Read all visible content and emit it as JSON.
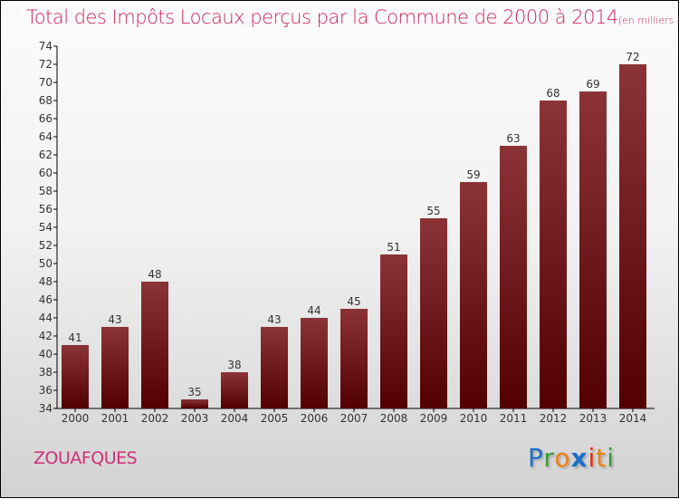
{
  "title": "Total des Impôts Locaux perçus par la Commune de 2000 à 2014",
  "title_unit": "(en milliers d'€)",
  "commune": "ZOUAFQUES",
  "logo": "Proxiti",
  "colors": {
    "bar_top": "#8b3438",
    "bar_bottom": "#520000",
    "title": "#c8285a"
  },
  "chart_data": {
    "type": "bar",
    "title": "Total des Impôts Locaux perçus par la Commune de 2000 à 2014 (en milliers d'€)",
    "xlabel": "",
    "ylabel": "",
    "categories": [
      "2000",
      "2001",
      "2002",
      "2003",
      "2004",
      "2005",
      "2006",
      "2007",
      "2008",
      "2009",
      "2010",
      "2011",
      "2012",
      "2013",
      "2014"
    ],
    "values": [
      41,
      43,
      48,
      35,
      38,
      43,
      44,
      45,
      51,
      55,
      59,
      63,
      68,
      69,
      72
    ],
    "ylim": [
      34,
      74
    ],
    "yticks": [
      34,
      36,
      38,
      40,
      42,
      44,
      46,
      48,
      50,
      52,
      54,
      56,
      58,
      60,
      62,
      64,
      66,
      68,
      70,
      72,
      74
    ],
    "grid": false
  }
}
